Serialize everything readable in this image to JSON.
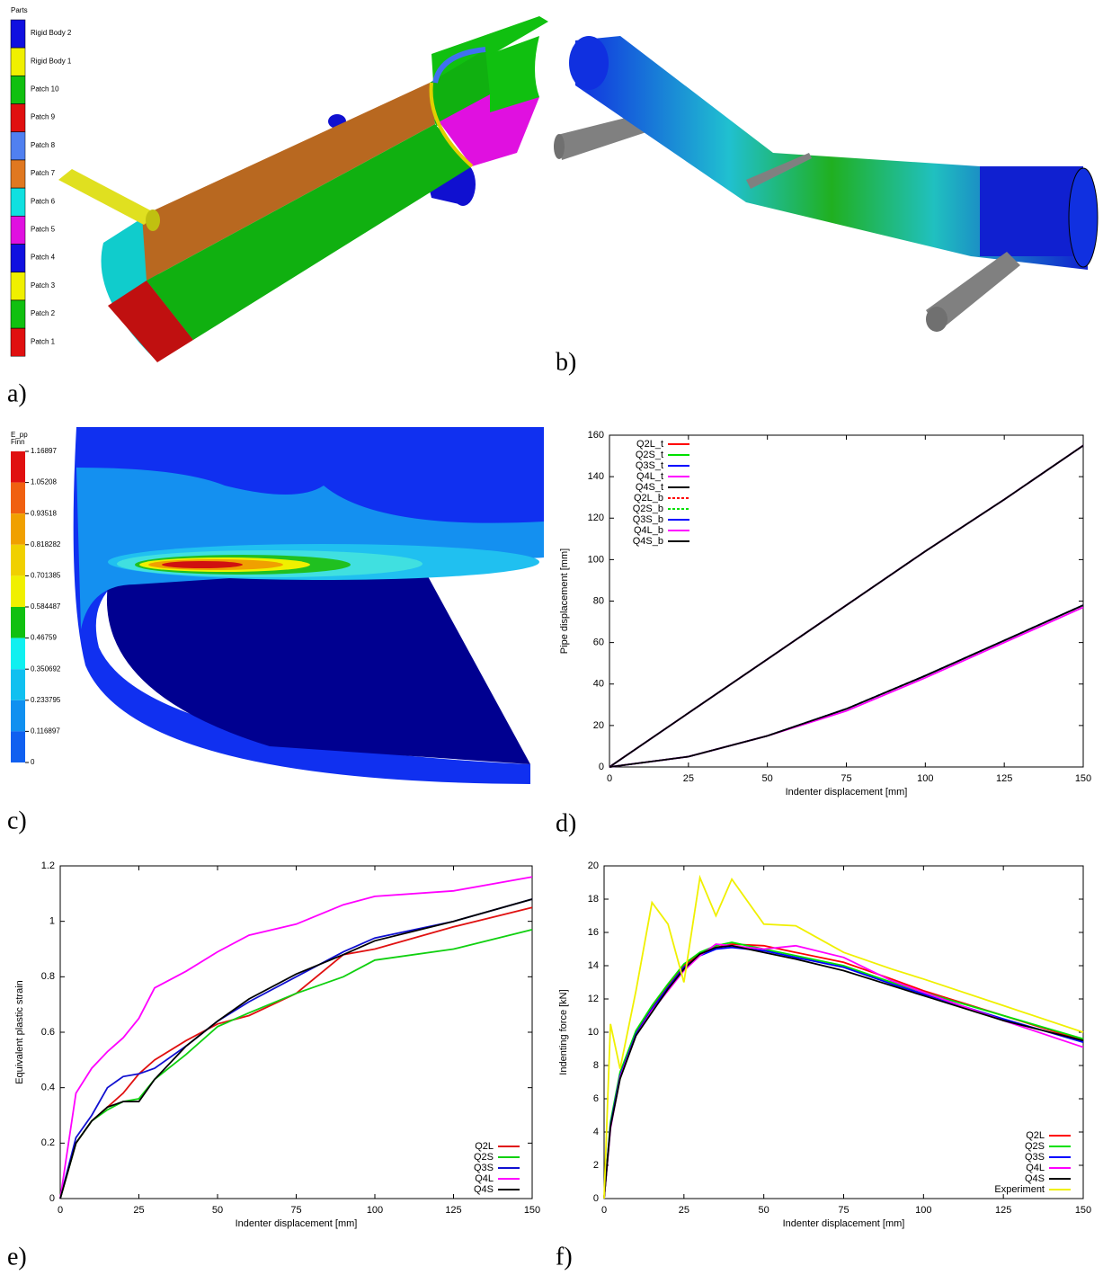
{
  "panel_labels": [
    "a)",
    "b)",
    "c)",
    "d)",
    "e)",
    "f)"
  ],
  "parts_legend": {
    "title": "Parts",
    "items": [
      {
        "name": "Rigid Body 2",
        "color": "#1010e0"
      },
      {
        "name": "Rigid Body 1",
        "color": "#f0f000"
      },
      {
        "name": "Patch 10",
        "color": "#10c010"
      },
      {
        "name": "Patch 9",
        "color": "#e01010"
      },
      {
        "name": "Patch 8",
        "color": "#5080f0"
      },
      {
        "name": "Patch 7",
        "color": "#e07820"
      },
      {
        "name": "Patch 6",
        "color": "#10e0e0"
      },
      {
        "name": "Patch 5",
        "color": "#e010e0"
      },
      {
        "name": "Patch 4",
        "color": "#1010e0"
      },
      {
        "name": "Patch 3",
        "color": "#f0f000"
      },
      {
        "name": "Patch 2",
        "color": "#10c010"
      },
      {
        "name": "Patch 1",
        "color": "#e01010"
      }
    ]
  },
  "colorbar": {
    "title": "E_pp",
    "subtitle": "Finn",
    "labels": [
      "1.16897",
      "1.05208",
      "0.93518",
      "0.818282",
      "0.701385",
      "0.584487",
      "0.46759",
      "0.350692",
      "0.233795",
      "0.116897",
      "0"
    ],
    "colors": [
      "#e01010",
      "#f06010",
      "#f0a000",
      "#f0d000",
      "#f0f000",
      "#10c010",
      "#10f0f0",
      "#10c0f0",
      "#1090f0",
      "#1060f0"
    ]
  },
  "chart_data": [
    {
      "type": "line",
      "xlabel": "Indenter displacement [mm]",
      "ylabel": "Pipe displacement [mm]",
      "x": [
        0,
        25,
        50,
        75,
        100,
        125,
        150
      ],
      "xlim": [
        0,
        150
      ],
      "ylim": [
        0,
        160
      ],
      "xticks": [
        0,
        25,
        50,
        75,
        100,
        125,
        150
      ],
      "yticks": [
        0,
        20,
        40,
        60,
        80,
        100,
        120,
        140,
        160
      ],
      "legend": "upper left",
      "series": [
        {
          "name": "Q2L_t",
          "color": "#ff0000",
          "dashed": false,
          "values": [
            0,
            26,
            52,
            78,
            104,
            129,
            155
          ]
        },
        {
          "name": "Q2S_t",
          "color": "#00e000",
          "dashed": false,
          "values": [
            0,
            26,
            52,
            78,
            104,
            129,
            155
          ]
        },
        {
          "name": "Q3S_t",
          "color": "#0000ff",
          "dashed": false,
          "values": [
            0,
            26,
            52,
            78,
            104,
            129,
            155
          ]
        },
        {
          "name": "Q4L_t",
          "color": "#ff00ff",
          "dashed": false,
          "values": [
            0,
            26,
            52,
            78,
            104,
            129,
            155
          ]
        },
        {
          "name": "Q4S_t",
          "color": "#000000",
          "dashed": false,
          "values": [
            0,
            26,
            52,
            78,
            104,
            129,
            155
          ]
        },
        {
          "name": "Q2L_b",
          "color": "#ff0000",
          "dashed": true,
          "values": [
            0,
            5,
            15,
            28,
            44,
            61,
            78
          ]
        },
        {
          "name": "Q2S_b",
          "color": "#00e000",
          "dashed": true,
          "values": [
            0,
            5,
            15,
            28,
            44,
            61,
            78
          ]
        },
        {
          "name": "Q3S_b",
          "color": "#0000ff",
          "dashed": false,
          "values": [
            0,
            5,
            15,
            28,
            44,
            61,
            78
          ]
        },
        {
          "name": "Q4L_b",
          "color": "#ff00ff",
          "dashed": false,
          "values": [
            0,
            5,
            15,
            27,
            43,
            60,
            77
          ]
        },
        {
          "name": "Q4S_b",
          "color": "#000000",
          "dashed": false,
          "values": [
            0,
            5,
            15,
            28,
            44,
            61,
            78
          ]
        }
      ]
    },
    {
      "type": "line",
      "xlabel": "Indenter displacement [mm]",
      "ylabel": "Equivalent plastic strain",
      "x": [
        0,
        5,
        10,
        15,
        20,
        25,
        30,
        40,
        50,
        60,
        75,
        90,
        100,
        125,
        150
      ],
      "xlim": [
        0,
        150
      ],
      "ylim": [
        0,
        1.2
      ],
      "xticks": [
        0,
        25,
        50,
        75,
        100,
        125,
        150
      ],
      "yticks": [
        0,
        0.2,
        0.4,
        0.6,
        0.8,
        1,
        1.2
      ],
      "legend": "lower right",
      "series": [
        {
          "name": "Q2L",
          "color": "#e01010",
          "dashed": false,
          "values": [
            0,
            0.2,
            0.28,
            0.33,
            0.38,
            0.45,
            0.5,
            0.57,
            0.63,
            0.66,
            0.74,
            0.88,
            0.9,
            0.98,
            1.05
          ]
        },
        {
          "name": "Q2S",
          "color": "#10d010",
          "dashed": false,
          "values": [
            0,
            0.2,
            0.28,
            0.32,
            0.35,
            0.36,
            0.43,
            0.52,
            0.62,
            0.67,
            0.74,
            0.8,
            0.86,
            0.9,
            0.97
          ]
        },
        {
          "name": "Q3S",
          "color": "#1010d0",
          "dashed": false,
          "values": [
            0,
            0.22,
            0.3,
            0.4,
            0.44,
            0.45,
            0.47,
            0.55,
            0.64,
            0.71,
            0.8,
            0.89,
            0.94,
            1.0,
            1.08
          ]
        },
        {
          "name": "Q4L",
          "color": "#ff00ff",
          "dashed": false,
          "values": [
            0,
            0.38,
            0.47,
            0.53,
            0.58,
            0.65,
            0.76,
            0.82,
            0.89,
            0.95,
            0.99,
            1.06,
            1.09,
            1.11,
            1.16
          ]
        },
        {
          "name": "Q4S",
          "color": "#000000",
          "dashed": false,
          "values": [
            0,
            0.2,
            0.28,
            0.33,
            0.35,
            0.35,
            0.43,
            0.55,
            0.64,
            0.72,
            0.81,
            0.88,
            0.93,
            1.0,
            1.08
          ]
        }
      ]
    },
    {
      "type": "line",
      "xlabel": "Indenter displacement [mm]",
      "ylabel": "Indenting force [kN]",
      "x": [
        0,
        2,
        5,
        10,
        15,
        20,
        25,
        30,
        35,
        40,
        50,
        60,
        75,
        90,
        100,
        125,
        150
      ],
      "xlim": [
        0,
        150
      ],
      "ylim": [
        0,
        20
      ],
      "xticks": [
        0,
        25,
        50,
        75,
        100,
        125,
        150
      ],
      "yticks": [
        0,
        2,
        4,
        6,
        8,
        10,
        12,
        14,
        16,
        18,
        20
      ],
      "legend": "lower right",
      "series": [
        {
          "name": "Q2L",
          "color": "#ff0000",
          "dashed": false,
          "values": [
            0,
            4.5,
            7.5,
            10,
            11.5,
            12.8,
            14,
            14.7,
            15.1,
            15.3,
            15.2,
            14.8,
            14.2,
            13.2,
            12.5,
            11,
            9.5
          ]
        },
        {
          "name": "Q2S",
          "color": "#00e000",
          "dashed": false,
          "values": [
            0,
            4.6,
            7.6,
            10.1,
            11.6,
            12.9,
            14.1,
            14.8,
            15.2,
            15.4,
            15,
            14.6,
            14,
            13,
            12.4,
            11,
            9.6
          ]
        },
        {
          "name": "Q3S",
          "color": "#0000ff",
          "dashed": false,
          "values": [
            0,
            4.4,
            7.4,
            9.9,
            11.4,
            12.7,
            13.9,
            14.6,
            15,
            15.1,
            14.9,
            14.5,
            13.9,
            12.9,
            12.3,
            10.8,
            9.4
          ]
        },
        {
          "name": "Q4L",
          "color": "#ff00ff",
          "dashed": false,
          "values": [
            0,
            4.2,
            7.3,
            9.8,
            11.3,
            12.5,
            13.7,
            14.6,
            15.3,
            15.2,
            15,
            15.2,
            14.5,
            13.1,
            12.4,
            10.7,
            9.1
          ]
        },
        {
          "name": "Q4S",
          "color": "#000000",
          "dashed": false,
          "values": [
            0,
            4.3,
            7.2,
            9.8,
            11.2,
            12.6,
            13.8,
            14.7,
            15.1,
            15.2,
            14.8,
            14.4,
            13.7,
            12.8,
            12.2,
            10.7,
            9.5
          ]
        },
        {
          "name": "Experiment",
          "color": "#f0f000",
          "dashed": false,
          "values": [
            0,
            10.5,
            7.8,
            12.5,
            17.8,
            16.5,
            13,
            19.3,
            17,
            19.2,
            16.5,
            16.4,
            14.8,
            13.8,
            13.2,
            11.6,
            10
          ]
        }
      ]
    }
  ]
}
